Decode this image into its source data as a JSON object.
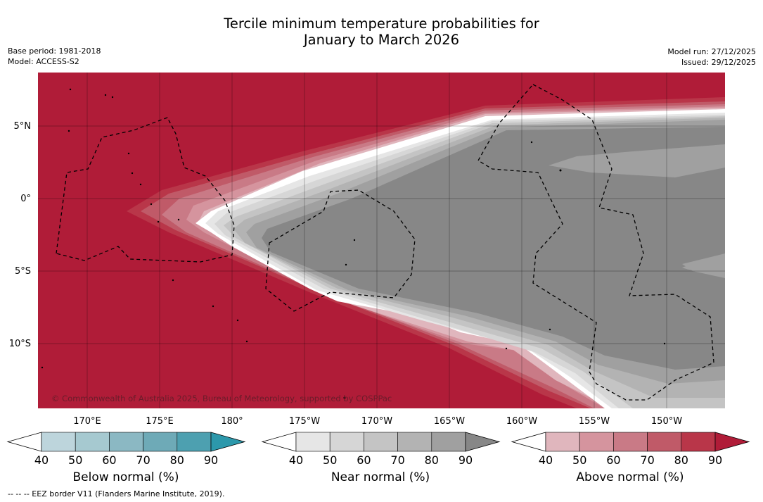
{
  "title_line1": "Tercile minimum temperature probabilities for",
  "title_line2": "January to March 2026",
  "base_period": "Base period: 1981-2018",
  "model": "Model: ACCESS-S2",
  "model_run": "Model run: 27/12/2025",
  "issued": "Issued: 29/12/2025",
  "copyright": "© Commonwealth of Australia 2025, Bureau of Meteorology, supported by COSPPac",
  "footer_note": "--  --  -- EEZ border V11 (Flanders Marine Institute, 2019).",
  "map": {
    "lat_labels": [
      "5°N",
      "0°",
      "5°S",
      "10°S"
    ],
    "lon_labels": [
      "170°E",
      "175°E",
      "180°",
      "175°W",
      "170°W",
      "165°W",
      "160°W",
      "155°W",
      "150°W"
    ]
  },
  "colorbars": [
    {
      "name": "below",
      "label": "Below normal (%)",
      "ticks": [
        "40",
        "50",
        "60",
        "70",
        "80",
        "90"
      ],
      "colors": [
        "#ffffff",
        "#bdd5dc",
        "#a6c9d0",
        "#8bb8c3",
        "#6eaab7",
        "#4da0b0",
        "#2c98ab"
      ]
    },
    {
      "name": "near",
      "label": "Near normal (%)",
      "ticks": [
        "40",
        "50",
        "60",
        "70",
        "80",
        "90"
      ],
      "colors": [
        "#ffffff",
        "#e6e6e6",
        "#d6d6d6",
        "#c4c4c4",
        "#b3b3b3",
        "#a0a0a0",
        "#878787"
      ]
    },
    {
      "name": "above",
      "label": "Above normal (%)",
      "ticks": [
        "40",
        "50",
        "60",
        "70",
        "80",
        "90"
      ],
      "colors": [
        "#ffffff",
        "#e0b6bd",
        "#d5949e",
        "#c97a86",
        "#c05a68",
        "#b93649",
        "#b01c38"
      ]
    }
  ]
}
